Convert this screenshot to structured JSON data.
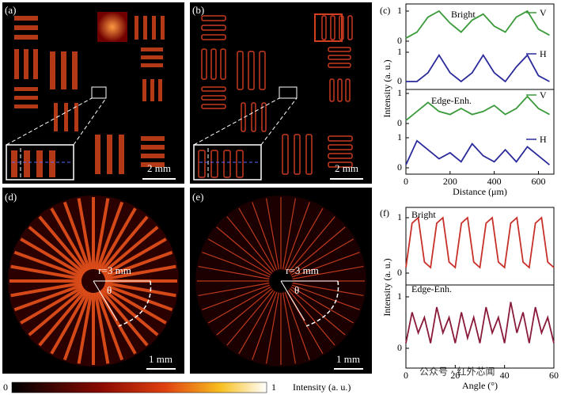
{
  "panel_labels": [
    "(a)",
    "(b)",
    "(c)",
    "(d)",
    "(e)",
    "(f)"
  ],
  "scale_bars": [
    "2 mm",
    "2 mm",
    "1 mm",
    "1 mm"
  ],
  "polar_labels": {
    "radius": "r=3 mm",
    "angle": "θ"
  },
  "colorbar": {
    "min": "0",
    "max": "1",
    "label": "Intensity (a. u.)"
  },
  "watermark": "公众号 · 红外芯闻",
  "chart_data": [
    {
      "type": "line",
      "xlabel": "Distance (μm)",
      "ylabel": "Intensity (a. u.)",
      "annotations": [
        "Bright",
        "Edge-Enh."
      ],
      "x": [
        0,
        50,
        100,
        150,
        200,
        250,
        300,
        350,
        400,
        450,
        500,
        550,
        600,
        650
      ],
      "xlim": [
        0,
        670
      ],
      "xticks": [
        0,
        200,
        400,
        600
      ],
      "ylim": [
        -0.1,
        1.1
      ],
      "yticks": [
        0,
        1
      ],
      "series": [
        {
          "name": "V",
          "color": "#3a9a3a",
          "values": [
            0.1,
            0.3,
            0.8,
            1.0,
            0.6,
            0.3,
            0.7,
            0.9,
            0.5,
            0.3,
            0.8,
            1.0,
            0.4,
            0.2
          ]
        },
        {
          "name": "H",
          "color": "#2a2a9a",
          "values": [
            0,
            0,
            0.3,
            0.9,
            0.3,
            0,
            0.3,
            0.9,
            0.3,
            0,
            0.5,
            0.9,
            0.2,
            0
          ]
        },
        {
          "name": "V",
          "color": "#3a9a3a",
          "values": [
            0.1,
            0.4,
            0.7,
            0.4,
            0.3,
            0.5,
            0.3,
            0.4,
            0.6,
            0.3,
            0.5,
            0.9,
            0.5,
            0.3
          ]
        },
        {
          "name": "H",
          "color": "#2a2a9a",
          "values": [
            0.1,
            0.9,
            0.6,
            0.3,
            0.5,
            0.2,
            0.8,
            0.4,
            0.2,
            0.6,
            0.2,
            0.7,
            0.4,
            0.1
          ]
        }
      ]
    },
    {
      "type": "line",
      "xlabel": "Angle (°)",
      "ylabel": "Intensity (a. u.)",
      "x": [
        0,
        2.5,
        5,
        7.5,
        10,
        12.5,
        15,
        17.5,
        20,
        22.5,
        25,
        27.5,
        30,
        32.5,
        35,
        37.5,
        40,
        42.5,
        45,
        47.5,
        50,
        52.5,
        55,
        57.5,
        60
      ],
      "xlim": [
        0,
        60
      ],
      "xticks": [
        0,
        20,
        40,
        60
      ],
      "ylim": [
        -0.1,
        1.1
      ],
      "yticks": [
        0,
        1
      ],
      "series": [
        {
          "name": "Bright",
          "color": "#c8302a",
          "values": [
            0.1,
            0.9,
            1.0,
            0.2,
            0.1,
            0.9,
            1.0,
            0.2,
            0.1,
            0.9,
            1.0,
            0.2,
            0.1,
            0.9,
            1.0,
            0.2,
            0.1,
            0.9,
            1.0,
            0.2,
            0.1,
            0.9,
            1.0,
            0.2,
            0.1
          ]
        },
        {
          "name": "Edge-Enh.",
          "color": "#8a1a3a",
          "values": [
            0.1,
            0.7,
            0.3,
            0.6,
            0.1,
            0.8,
            0.3,
            0.6,
            0.1,
            0.7,
            0.2,
            0.6,
            0.1,
            0.8,
            0.3,
            0.6,
            0.1,
            0.9,
            0.3,
            0.7,
            0.1,
            0.8,
            0.3,
            0.6,
            0.1
          ]
        }
      ]
    }
  ]
}
